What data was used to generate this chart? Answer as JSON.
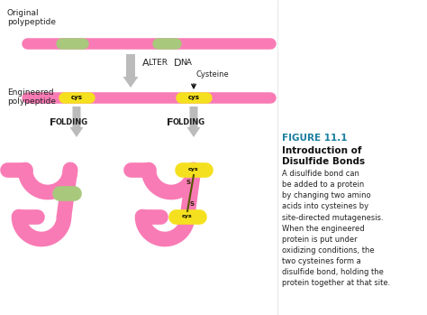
{
  "bg_color": "#ffffff",
  "pink": "#F97BB5",
  "green": "#A8C87C",
  "yellow": "#F5E020",
  "gray_arrow": "#BBBBBB",
  "text_dark": "#222222",
  "figure_title": "FIGURE 11.1",
  "figure_subtitle": "Introduction of\nDisulfide Bonds",
  "figure_body": "A disulfide bond can\nbe added to a protein\nby changing two amino\nacids into cysteines by\nsite-directed mutagenesis.\nWhen the engineered\nprotein is put under\noxidizing conditions, the\ntwo cysteines form a\ndisulfide bond, holding the\nprotein together at that site.",
  "label_original": "Original\npolypeptide",
  "label_engineered": "Engineered\npolypeptide",
  "label_alter_dna": "Alter DNA",
  "label_cysteine": "Cysteine",
  "label_cys": "cys",
  "label_folding": "Folding",
  "bar_lw": 9,
  "curl_lw": 12
}
